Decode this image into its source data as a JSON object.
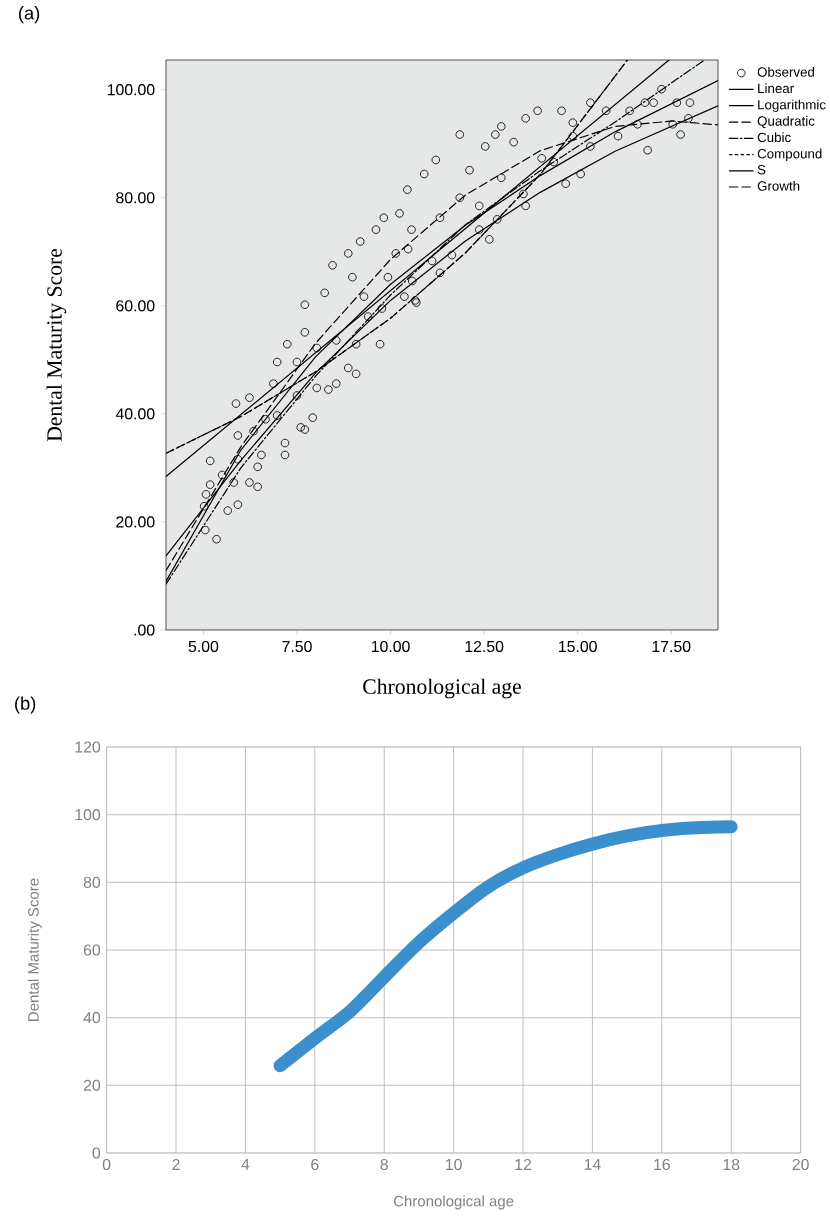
{
  "chart_data": [
    {
      "type": "scatter",
      "title": "(a)",
      "xlabel": "Chronological age",
      "ylabel": "Dental Maturity Score",
      "xlim": [
        4,
        18.75
      ],
      "ylim": [
        0,
        105.5
      ],
      "xticks": [
        {
          "value": 5,
          "label": "5.00"
        },
        {
          "value": 7.5,
          "label": "7.50"
        },
        {
          "value": 10,
          "label": "10.00"
        },
        {
          "value": 12.5,
          "label": "12.50"
        },
        {
          "value": 15,
          "label": "15.00"
        },
        {
          "value": 17.5,
          "label": "17.50"
        }
      ],
      "yticks": [
        {
          "value": 0,
          "label": ".00"
        },
        {
          "value": 20,
          "label": "20.00"
        },
        {
          "value": 40,
          "label": "40.00"
        },
        {
          "value": 60,
          "label": "60.00"
        },
        {
          "value": 80,
          "label": "80.00"
        },
        {
          "value": 100,
          "label": "100.00"
        }
      ],
      "legend": "top right",
      "marker": "circle",
      "series": [
        {
          "name": "Observed",
          "type": "scatter",
          "color": "#000000",
          "x": [
            5.05,
            5.35,
            5.02,
            5.07,
            5.18,
            5.18,
            5.5,
            5.65,
            5.92,
            5.81,
            5.92,
            5.92,
            5.87,
            6.23,
            6.23,
            6.45,
            6.45,
            6.55,
            6.34,
            6.66,
            6.87,
            6.97,
            7.24,
            7.18,
            6.97,
            7.18,
            7.5,
            7.6,
            7.71,
            7.92,
            7.71,
            7.71,
            7.5,
            8.03,
            8.03,
            8.34,
            8.24,
            8.45,
            8.55,
            8.55,
            8.87,
            9.08,
            8.87,
            8.98,
            9.19,
            9.29,
            9.08,
            9.4,
            9.72,
            9.61,
            9.82,
            9.93,
            9.77,
            10.14,
            10.24,
            10.45,
            10.66,
            10.56,
            10.69,
            10.37,
            10.58,
            10.47,
            10.9,
            11.21,
            11.32,
            11.11,
            11.64,
            11.32,
            11.85,
            11.85,
            12.11,
            12.37,
            12.53,
            12.8,
            12.64,
            12.37,
            12.85,
            12.96,
            12.96,
            13.29,
            13.61,
            13.61,
            13.55,
            13.93,
            14.04,
            14.36,
            14.68,
            14.57,
            14.87,
            14.87,
            15.08,
            15.34,
            15.34,
            15.76,
            16.08,
            16.39,
            16.6,
            16.87,
            17.03,
            17.24,
            17.65,
            17.75,
            17.96,
            18.0,
            17.54,
            16.8
          ],
          "values": [
            18.5,
            16.8,
            22.9,
            25.1,
            26.9,
            31.3,
            28.7,
            22.1,
            23.2,
            27.3,
            31.6,
            36,
            41.9,
            43,
            27.3,
            26.5,
            30.2,
            32.4,
            36.8,
            39,
            45.6,
            49.6,
            52.9,
            32.4,
            39.7,
            34.6,
            43.4,
            37.5,
            37.1,
            39.3,
            60.2,
            55.1,
            49.6,
            52.2,
            44.8,
            44.5,
            62.4,
            67.5,
            53.6,
            45.6,
            48.5,
            47.4,
            69.7,
            65.3,
            71.9,
            61.7,
            52.9,
            58,
            52.9,
            74.1,
            76.3,
            65.3,
            59.5,
            69.7,
            77.1,
            81.5,
            61,
            74.1,
            60.6,
            61.7,
            64.6,
            70.5,
            84.4,
            87,
            76.3,
            68.3,
            69.4,
            66.1,
            91.7,
            80,
            85.1,
            78.5,
            89.5,
            91.7,
            72.3,
            74.1,
            76,
            83.7,
            93.2,
            90.3,
            94.7,
            78.5,
            80.7,
            96.1,
            87.3,
            86.6,
            82.6,
            96.1,
            93.9,
            91.4,
            84.4,
            89.5,
            97.6,
            96.1,
            91.4,
            96.1,
            93.6,
            88.8,
            97.6,
            100.1,
            97.6,
            91.7,
            94.7,
            97.6,
            93.6,
            97.6
          ]
        },
        {
          "name": "Linear",
          "type": "line",
          "color": "#000000",
          "marker": "none",
          "line_style": "solid",
          "x": [
            4,
            17.44
          ],
          "values": [
            28.4,
            105.5
          ]
        },
        {
          "name": "Logarithmic",
          "type": "line",
          "color": "#000000",
          "marker": "none",
          "line_style": "solid",
          "x": [
            4,
            6,
            8,
            10,
            12,
            14,
            16,
            18.75
          ],
          "values": [
            9.0,
            33.3,
            50.6,
            64.0,
            74.9,
            84.1,
            92.2,
            101.7
          ]
        },
        {
          "name": "Quadratic",
          "type": "line",
          "color": "#000000",
          "marker": "none",
          "line_style": "dashed",
          "x": [
            4,
            6,
            8,
            10,
            12,
            14,
            16,
            17.5,
            18.75
          ],
          "values": [
            11.0,
            33.9,
            53.1,
            68.6,
            80.5,
            88.7,
            93.2,
            94.2,
            93.5
          ]
        },
        {
          "name": "Cubic",
          "type": "line",
          "color": "#000000",
          "marker": "none",
          "line_style": "dashdot",
          "x": [
            4,
            6,
            8,
            10,
            12,
            14,
            16,
            18.39
          ],
          "values": [
            8.5,
            30,
            47,
            62,
            75,
            85,
            94,
            105.5
          ]
        },
        {
          "name": "Compound",
          "type": "line",
          "color": "#000000",
          "marker": "none",
          "line_style": "dotted",
          "x": [
            4,
            6,
            8,
            10,
            12,
            14,
            16.33
          ],
          "values": [
            32.7,
            39.5,
            47.8,
            57.7,
            69.8,
            84.3,
            105.5
          ]
        },
        {
          "name": "S",
          "type": "line",
          "color": "#000000",
          "marker": "none",
          "line_style": "solid",
          "x": [
            4,
            6,
            8,
            10,
            12,
            14,
            16,
            18.75
          ],
          "values": [
            13.7,
            31.4,
            47.6,
            61,
            72,
            81,
            88.6,
            97
          ]
        },
        {
          "name": "Growth",
          "type": "line",
          "color": "#000000",
          "marker": "none",
          "line_style": "dashed",
          "x": [
            4,
            6,
            8,
            10,
            12,
            14,
            16.33
          ],
          "values": [
            32.7,
            39.5,
            47.8,
            57.7,
            69.8,
            84.3,
            105.5
          ]
        }
      ]
    },
    {
      "type": "line",
      "title": "(b)",
      "xlabel": "Chronological age",
      "ylabel": "Dental Maturity Score",
      "xlim": [
        0,
        20
      ],
      "ylim": [
        0,
        120
      ],
      "xticks": [
        0,
        2,
        4,
        6,
        8,
        10,
        12,
        14,
        16,
        18,
        20
      ],
      "yticks": [
        0,
        20,
        40,
        60,
        80,
        100,
        120
      ],
      "grid": true,
      "series": [
        {
          "color": "#3b8fcd",
          "x": [
            5,
            6,
            7,
            8,
            9,
            10,
            11,
            12,
            13,
            14,
            15,
            16,
            17,
            18
          ],
          "values": [
            25.8,
            33.9,
            41.7,
            52,
            62.2,
            70.9,
            78.7,
            84.3,
            88.2,
            91.3,
            93.7,
            95.3,
            96.1,
            96.4
          ]
        }
      ]
    }
  ]
}
